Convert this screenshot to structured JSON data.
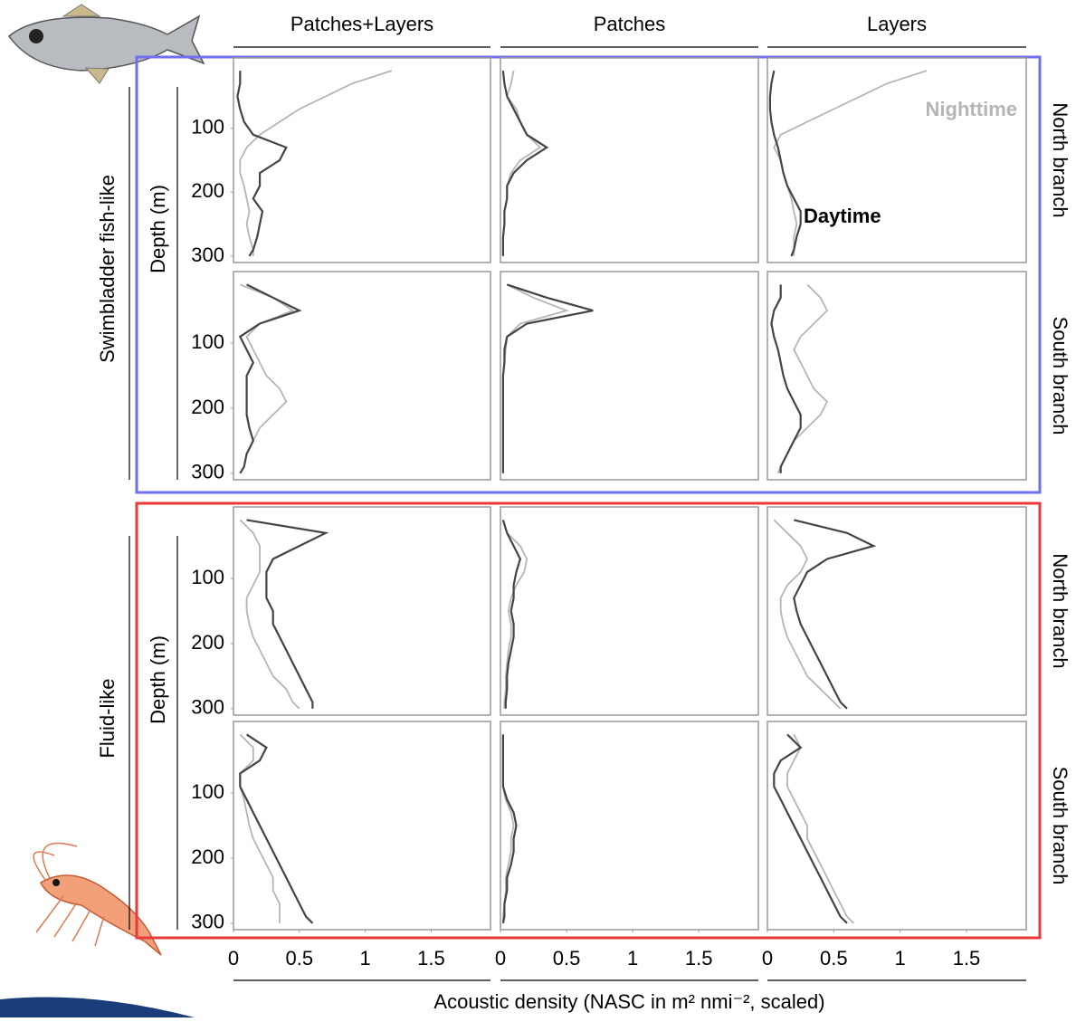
{
  "columns": [
    "Patches+Layers",
    "Patches",
    "Layers"
  ],
  "groups": [
    {
      "label": "Swimbladder fish-like",
      "depth_label": "Depth (m)"
    },
    {
      "label": "Fluid-like",
      "depth_label": "Depth (m)"
    }
  ],
  "branches": [
    "North branch",
    "South branch",
    "North branch",
    "South branch"
  ],
  "x_label": "Acoustic density (NASC in m² nmi⁻², scaled)",
  "annotations": {
    "night": "Nighttime",
    "day": "Daytime"
  },
  "chart_data": [
    {
      "type": "line",
      "x": [
        10,
        30,
        50,
        70,
        90,
        110,
        130,
        150,
        170,
        190,
        210,
        230,
        250,
        270,
        290,
        300
      ],
      "xlim": [
        0,
        1.95
      ],
      "ylim": [
        -10,
        310
      ],
      "yticks": [
        100,
        200,
        300
      ],
      "series": [
        {
          "color": "#b5b5b5",
          "values": [
            1.2,
            0.9,
            0.7,
            0.5,
            0.35,
            0.2,
            0.1,
            0.05,
            0.05,
            0.08,
            0.1,
            0.12,
            0.1,
            0.12,
            0.15,
            0.15
          ]
        },
        {
          "color": "#444444",
          "values": [
            0.05,
            0.05,
            0.03,
            0.05,
            0.08,
            0.15,
            0.4,
            0.35,
            0.2,
            0.2,
            0.15,
            0.22,
            0.2,
            0.18,
            0.15,
            0.12
          ]
        }
      ]
    },
    {
      "type": "line",
      "x": [
        10,
        30,
        50,
        70,
        90,
        110,
        130,
        150,
        170,
        190,
        210,
        230,
        250,
        270,
        290,
        300
      ],
      "xlim": [
        0,
        1.95
      ],
      "ylim": [
        -10,
        310
      ],
      "series": [
        {
          "color": "#b5b5b5",
          "values": [
            0.1,
            0.08,
            0.05,
            0.12,
            0.15,
            0.2,
            0.3,
            0.15,
            0.08,
            0.05,
            0.05,
            0.03,
            0.03,
            0.02,
            0.02,
            0.02
          ]
        },
        {
          "color": "#444444",
          "values": [
            0.02,
            0.03,
            0.05,
            0.1,
            0.15,
            0.2,
            0.35,
            0.2,
            0.1,
            0.05,
            0.05,
            0.03,
            0.03,
            0.02,
            0.02,
            0.02
          ]
        }
      ]
    },
    {
      "type": "line",
      "x": [
        10,
        30,
        50,
        70,
        90,
        110,
        130,
        150,
        170,
        190,
        210,
        230,
        250,
        270,
        290,
        300
      ],
      "xlim": [
        0,
        1.95
      ],
      "ylim": [
        -10,
        310
      ],
      "series": [
        {
          "color": "#b5b5b5",
          "values": [
            1.2,
            0.9,
            0.7,
            0.5,
            0.3,
            0.1,
            0.05,
            0.1,
            0.12,
            0.15,
            0.18,
            0.2,
            0.22,
            0.2,
            0.2,
            0.2
          ]
        },
        {
          "color": "#444444",
          "values": [
            0.05,
            0.03,
            0.02,
            0.02,
            0.03,
            0.05,
            0.08,
            0.1,
            0.12,
            0.15,
            0.2,
            0.25,
            0.25,
            0.22,
            0.2,
            0.18
          ]
        }
      ]
    },
    {
      "type": "line",
      "x": [
        10,
        30,
        50,
        70,
        90,
        110,
        130,
        150,
        170,
        190,
        210,
        230,
        250,
        270,
        290,
        300
      ],
      "xlim": [
        0,
        1.95
      ],
      "ylim": [
        -10,
        310
      ],
      "yticks": [
        100,
        200,
        300
      ],
      "series": [
        {
          "color": "#b5b5b5",
          "values": [
            0.05,
            0.3,
            0.45,
            0.2,
            0.1,
            0.15,
            0.2,
            0.25,
            0.35,
            0.4,
            0.3,
            0.2,
            0.15,
            0.1,
            0.08,
            0.05
          ]
        },
        {
          "color": "#444444",
          "values": [
            0.1,
            0.3,
            0.5,
            0.2,
            0.05,
            0.1,
            0.15,
            0.1,
            0.1,
            0.1,
            0.1,
            0.12,
            0.15,
            0.1,
            0.08,
            0.05
          ]
        }
      ]
    },
    {
      "type": "line",
      "x": [
        10,
        30,
        50,
        70,
        90,
        110,
        130,
        150,
        170,
        190,
        210,
        230,
        250,
        270,
        290,
        300
      ],
      "xlim": [
        0,
        1.95
      ],
      "ylim": [
        -10,
        310
      ],
      "series": [
        {
          "color": "#b5b5b5",
          "values": [
            0.05,
            0.25,
            0.5,
            0.15,
            0.05,
            0.04,
            0.03,
            0.02,
            0.02,
            0.02,
            0.02,
            0.02,
            0.02,
            0.02,
            0.02,
            0.02
          ]
        },
        {
          "color": "#444444",
          "values": [
            0.05,
            0.35,
            0.7,
            0.2,
            0.05,
            0.03,
            0.03,
            0.02,
            0.02,
            0.02,
            0.02,
            0.02,
            0.02,
            0.02,
            0.02,
            0.02
          ]
        }
      ]
    },
    {
      "type": "line",
      "x": [
        10,
        30,
        50,
        70,
        90,
        110,
        130,
        150,
        170,
        190,
        210,
        230,
        250,
        270,
        290,
        300
      ],
      "xlim": [
        0,
        1.95
      ],
      "ylim": [
        -10,
        310
      ],
      "series": [
        {
          "color": "#b5b5b5",
          "values": [
            0.3,
            0.4,
            0.45,
            0.35,
            0.25,
            0.2,
            0.25,
            0.3,
            0.35,
            0.45,
            0.4,
            0.3,
            0.2,
            0.15,
            0.1,
            0.08
          ]
        },
        {
          "color": "#444444",
          "values": [
            0.1,
            0.1,
            0.05,
            0.03,
            0.05,
            0.08,
            0.1,
            0.12,
            0.15,
            0.2,
            0.25,
            0.25,
            0.2,
            0.15,
            0.1,
            0.1
          ]
        }
      ]
    },
    {
      "type": "line",
      "x": [
        10,
        30,
        50,
        70,
        90,
        110,
        130,
        150,
        170,
        190,
        210,
        230,
        250,
        270,
        290,
        300
      ],
      "xlim": [
        0,
        1.95
      ],
      "ylim": [
        -10,
        310
      ],
      "yticks": [
        100,
        200,
        300
      ],
      "series": [
        {
          "color": "#b5b5b5",
          "values": [
            0.05,
            0.15,
            0.2,
            0.2,
            0.2,
            0.15,
            0.1,
            0.1,
            0.12,
            0.15,
            0.2,
            0.25,
            0.3,
            0.4,
            0.45,
            0.5
          ]
        },
        {
          "color": "#444444",
          "values": [
            0.1,
            0.7,
            0.5,
            0.3,
            0.25,
            0.25,
            0.25,
            0.3,
            0.3,
            0.35,
            0.4,
            0.45,
            0.5,
            0.55,
            0.6,
            0.6
          ]
        }
      ]
    },
    {
      "type": "line",
      "x": [
        10,
        30,
        50,
        70,
        90,
        110,
        130,
        150,
        170,
        190,
        210,
        230,
        250,
        270,
        290,
        300
      ],
      "xlim": [
        0,
        1.95
      ],
      "ylim": [
        -10,
        310
      ],
      "series": [
        {
          "color": "#b5b5b5",
          "values": [
            0.02,
            0.05,
            0.15,
            0.2,
            0.18,
            0.12,
            0.08,
            0.06,
            0.08,
            0.08,
            0.06,
            0.05,
            0.04,
            0.04,
            0.03,
            0.03
          ]
        },
        {
          "color": "#444444",
          "values": [
            0.02,
            0.05,
            0.1,
            0.15,
            0.12,
            0.1,
            0.1,
            0.08,
            0.1,
            0.1,
            0.08,
            0.06,
            0.05,
            0.05,
            0.04,
            0.04
          ]
        }
      ]
    },
    {
      "type": "line",
      "x": [
        10,
        30,
        50,
        70,
        90,
        110,
        130,
        150,
        170,
        190,
        210,
        230,
        250,
        270,
        290,
        300
      ],
      "xlim": [
        0,
        1.95
      ],
      "ylim": [
        -10,
        310
      ],
      "series": [
        {
          "color": "#b5b5b5",
          "values": [
            0.05,
            0.15,
            0.25,
            0.3,
            0.25,
            0.15,
            0.1,
            0.1,
            0.12,
            0.15,
            0.2,
            0.25,
            0.3,
            0.4,
            0.5,
            0.55
          ]
        },
        {
          "color": "#444444",
          "values": [
            0.2,
            0.6,
            0.8,
            0.45,
            0.3,
            0.25,
            0.2,
            0.22,
            0.25,
            0.3,
            0.35,
            0.4,
            0.45,
            0.5,
            0.55,
            0.6
          ]
        }
      ]
    },
    {
      "type": "line",
      "x": [
        10,
        30,
        50,
        70,
        90,
        110,
        130,
        150,
        170,
        190,
        210,
        230,
        250,
        270,
        290,
        300
      ],
      "xlim": [
        0,
        1.95
      ],
      "ylim": [
        -10,
        310
      ],
      "yticks": [
        100,
        200,
        300
      ],
      "xticks": [
        0,
        0.5,
        1,
        1.5
      ],
      "series": [
        {
          "color": "#b5b5b5",
          "values": [
            0.05,
            0.15,
            0.15,
            0.05,
            0.05,
            0.08,
            0.1,
            0.12,
            0.15,
            0.2,
            0.25,
            0.3,
            0.3,
            0.35,
            0.35,
            0.35
          ]
        },
        {
          "color": "#444444",
          "values": [
            0.1,
            0.25,
            0.2,
            0.05,
            0.05,
            0.1,
            0.15,
            0.2,
            0.25,
            0.3,
            0.35,
            0.4,
            0.45,
            0.5,
            0.55,
            0.6
          ]
        }
      ]
    },
    {
      "type": "line",
      "x": [
        10,
        30,
        50,
        70,
        90,
        110,
        130,
        150,
        170,
        190,
        210,
        230,
        250,
        270,
        290,
        300
      ],
      "xlim": [
        0,
        1.95
      ],
      "ylim": [
        -10,
        310
      ],
      "xticks": [
        0,
        0.5,
        1,
        1.5
      ],
      "series": [
        {
          "color": "#b5b5b5",
          "values": [
            0.02,
            0.02,
            0.02,
            0.02,
            0.02,
            0.04,
            0.08,
            0.1,
            0.08,
            0.08,
            0.06,
            0.04,
            0.04,
            0.03,
            0.02,
            0.02
          ]
        },
        {
          "color": "#444444",
          "values": [
            0.02,
            0.02,
            0.02,
            0.02,
            0.02,
            0.05,
            0.1,
            0.12,
            0.1,
            0.1,
            0.08,
            0.05,
            0.05,
            0.03,
            0.03,
            0.02
          ]
        }
      ]
    },
    {
      "type": "line",
      "x": [
        10,
        30,
        50,
        70,
        90,
        110,
        130,
        150,
        170,
        190,
        210,
        230,
        250,
        270,
        290,
        300
      ],
      "xlim": [
        0,
        1.95
      ],
      "ylim": [
        -10,
        310
      ],
      "xticks": [
        0,
        0.5,
        1,
        1.5
      ],
      "series": [
        {
          "color": "#b5b5b5",
          "values": [
            0.2,
            0.25,
            0.2,
            0.15,
            0.15,
            0.2,
            0.25,
            0.3,
            0.3,
            0.35,
            0.4,
            0.45,
            0.5,
            0.55,
            0.6,
            0.65
          ]
        },
        {
          "color": "#444444",
          "values": [
            0.15,
            0.25,
            0.1,
            0.05,
            0.05,
            0.1,
            0.15,
            0.2,
            0.25,
            0.3,
            0.35,
            0.4,
            0.45,
            0.5,
            0.55,
            0.6
          ]
        }
      ]
    }
  ]
}
